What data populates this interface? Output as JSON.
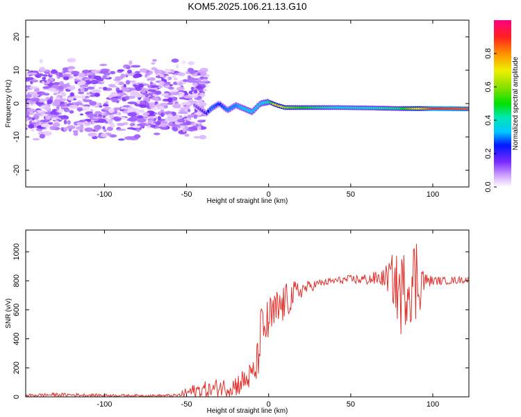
{
  "title": "KOM5.2025.106.21.13.G10",
  "chart_data": [
    {
      "type": "heatmap",
      "xlabel": "Height of straight line (km)",
      "ylabel": "Frequency (Hz)",
      "xlim": [
        -148,
        122
      ],
      "ylim": [
        -25,
        25
      ],
      "xticks": [
        -100,
        -50,
        0,
        50,
        100
      ],
      "yticks": [
        -20,
        -10,
        0,
        10,
        20
      ],
      "colorbar": {
        "label": "Normalized spectral amplitude",
        "range": [
          0,
          1
        ],
        "ticks": [
          "0.0",
          "0.2",
          "0.4",
          "0.6",
          "0.8"
        ]
      },
      "ridge": {
        "x": [
          -148,
          -100,
          -60,
          -45,
          -38,
          -35,
          -30,
          -25,
          -20,
          -15,
          -10,
          -5,
          0,
          5,
          10,
          20,
          40,
          60,
          80,
          100,
          122
        ],
        "freq_hz": [
          1.5,
          1.0,
          0.5,
          -0.5,
          -3.0,
          -1.5,
          0.0,
          -2.0,
          -0.5,
          -1.5,
          -2.5,
          0.0,
          0.5,
          -0.5,
          -1.2,
          -1.2,
          -1.2,
          -1.3,
          -1.5,
          -1.5,
          -1.6
        ],
        "amplitude": [
          0.1,
          0.1,
          0.1,
          0.12,
          0.2,
          0.3,
          0.25,
          0.3,
          0.3,
          0.35,
          0.35,
          0.35,
          0.4,
          0.8,
          0.6,
          0.5,
          0.4,
          0.4,
          0.45,
          0.9,
          0.85
        ]
      },
      "scatter_region": {
        "x_range": [
          -148,
          -38
        ],
        "freq_range_hz": [
          -8,
          10
        ],
        "amplitude": [
          0.02,
          0.15
        ]
      }
    },
    {
      "type": "line",
      "xlabel": "Height of straight line (km)",
      "ylabel": "SNR (v/v)",
      "xlim": [
        -148,
        122
      ],
      "ylim": [
        0,
        1150
      ],
      "xticks": [
        -100,
        -50,
        0,
        50,
        100
      ],
      "yticks": [
        0,
        200,
        400,
        600,
        800,
        1000
      ],
      "color": "#e0302a",
      "series": [
        {
          "x": [
            -148,
            -130,
            -110,
            -90,
            -70,
            -55,
            -50,
            -45,
            -40,
            -35,
            -30,
            -25,
            -20,
            -15,
            -10,
            -8,
            -6,
            -5,
            -3,
            0,
            3,
            6,
            10,
            15,
            20,
            25,
            30,
            35,
            40,
            50,
            60,
            70,
            75,
            80,
            85,
            90,
            92,
            95,
            100,
            110,
            122
          ],
          "y": [
            10,
            15,
            12,
            10,
            8,
            10,
            30,
            40,
            50,
            45,
            70,
            60,
            80,
            110,
            150,
            180,
            300,
            450,
            460,
            520,
            560,
            600,
            650,
            700,
            740,
            760,
            780,
            790,
            800,
            810,
            810,
            820,
            830,
            700,
            780,
            800,
            820,
            800,
            800,
            800,
            810
          ],
          "noise_envelope": [
            10,
            12,
            10,
            8,
            8,
            10,
            40,
            50,
            60,
            55,
            70,
            60,
            80,
            90,
            100,
            110,
            150,
            180,
            160,
            170,
            170,
            150,
            130,
            100,
            60,
            40,
            30,
            25,
            25,
            30,
            40,
            60,
            150,
            300,
            250,
            350,
            250,
            60,
            30,
            25,
            25
          ]
        }
      ]
    }
  ]
}
